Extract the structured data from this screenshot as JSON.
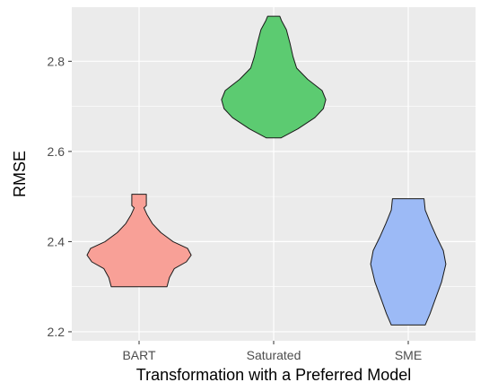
{
  "chart_data": {
    "type": "violin",
    "title": "",
    "xlabel": "Transformation with a Preferred Model",
    "ylabel": "RMSE",
    "categories": [
      "BART",
      "Saturated",
      "SME"
    ],
    "ylim": [
      2.18,
      2.92
    ],
    "yticks": [
      2.2,
      2.4,
      2.6,
      2.8
    ],
    "ytick_labels": [
      "2.2",
      "2.4",
      "2.6",
      "2.8"
    ],
    "grid": true,
    "legend": "none",
    "panel_background": "#ebebeb",
    "grid_color": "#ffffff",
    "outline_color": "#1a1a1a",
    "series": [
      {
        "category": "BART",
        "color": "#f8a097",
        "min": 2.3,
        "max": 2.505,
        "density": [
          [
            2.3,
            0.46
          ],
          [
            2.32,
            0.5
          ],
          [
            2.34,
            0.58
          ],
          [
            2.355,
            0.78
          ],
          [
            2.37,
            0.86
          ],
          [
            2.385,
            0.8
          ],
          [
            2.4,
            0.56
          ],
          [
            2.42,
            0.36
          ],
          [
            2.44,
            0.22
          ],
          [
            2.46,
            0.13
          ],
          [
            2.475,
            0.08
          ],
          [
            2.48,
            0.12
          ],
          [
            2.49,
            0.12
          ],
          [
            2.505,
            0.12
          ]
        ]
      },
      {
        "category": "Saturated",
        "color": "#5ccb71",
        "min": 2.63,
        "max": 2.9,
        "density": [
          [
            2.63,
            0.12
          ],
          [
            2.65,
            0.4
          ],
          [
            2.675,
            0.68
          ],
          [
            2.695,
            0.82
          ],
          [
            2.715,
            0.86
          ],
          [
            2.735,
            0.8
          ],
          [
            2.76,
            0.56
          ],
          [
            2.785,
            0.38
          ],
          [
            2.81,
            0.32
          ],
          [
            2.84,
            0.27
          ],
          [
            2.87,
            0.21
          ],
          [
            2.89,
            0.13
          ],
          [
            2.9,
            0.1
          ]
        ]
      },
      {
        "category": "SME",
        "color": "#9cbaf6",
        "min": 2.215,
        "max": 2.495,
        "density": [
          [
            2.215,
            0.28
          ],
          [
            2.24,
            0.36
          ],
          [
            2.27,
            0.44
          ],
          [
            2.31,
            0.55
          ],
          [
            2.35,
            0.62
          ],
          [
            2.38,
            0.58
          ],
          [
            2.41,
            0.47
          ],
          [
            2.44,
            0.37
          ],
          [
            2.47,
            0.28
          ],
          [
            2.495,
            0.26
          ]
        ]
      }
    ]
  }
}
